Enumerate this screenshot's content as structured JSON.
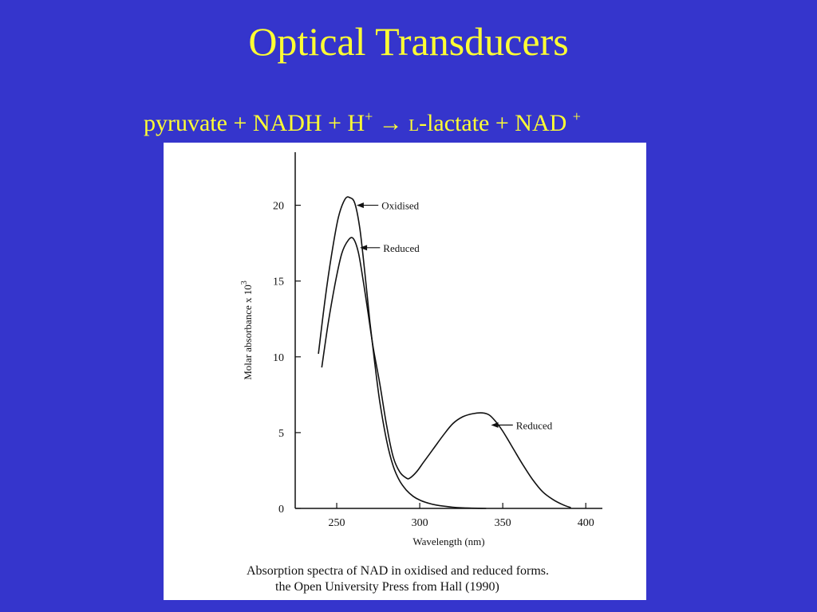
{
  "slide": {
    "title": "Optical Transducers",
    "equation": {
      "part1": "pyruvate + NADH + H",
      "h_sup": "+",
      "arrow": " → ",
      "l_prefix": "L",
      "part2": "-lactate + NAD ",
      "nad_sup": "+"
    }
  },
  "figure": {
    "caption_line1": "Absorption spectra of NAD in oxidised and reduced forms.",
    "caption_line2": "the Open University Press from Hall (1990)"
  },
  "colors": {
    "background": "#3535cc",
    "title_text": "#ffff33",
    "panel": "#ffffff",
    "ink": "#111111"
  },
  "chart_data": {
    "type": "line",
    "title": "",
    "xlabel": "Wavelength (nm)",
    "ylabel": "Molar absorbance  x  10",
    "ylabel_sup": "3",
    "xlim": [
      225,
      410
    ],
    "ylim": [
      0,
      23.5
    ],
    "xticks": [
      250,
      300,
      350,
      400
    ],
    "yticks": [
      0,
      5,
      10,
      15,
      20
    ],
    "grid": false,
    "series": [
      {
        "name": "Oxidised",
        "x": [
          239,
          243,
          247,
          251,
          255,
          258,
          261,
          264,
          267,
          270,
          273,
          276,
          280,
          284,
          288,
          292,
          296,
          300,
          305,
          310,
          320,
          330,
          340
        ],
        "y": [
          10.2,
          13.8,
          16.8,
          19.2,
          20.4,
          20.5,
          20.1,
          18.4,
          15.5,
          12.3,
          9.5,
          7.0,
          4.5,
          2.8,
          1.8,
          1.2,
          0.8,
          0.55,
          0.35,
          0.22,
          0.08,
          0.02,
          0.0
        ]
      },
      {
        "name": "Reduced",
        "x": [
          241,
          245,
          249,
          253,
          257,
          260,
          263,
          266,
          269,
          272,
          276,
          280,
          284,
          288,
          292,
          294,
          298,
          302,
          308,
          314,
          320,
          326,
          332,
          338,
          342,
          346,
          350,
          356,
          362,
          368,
          374,
          380,
          386,
          391
        ],
        "y": [
          9.3,
          12.3,
          14.8,
          16.8,
          17.7,
          17.8,
          16.9,
          15.0,
          12.8,
          10.6,
          8.2,
          5.5,
          3.4,
          2.4,
          2.0,
          2.0,
          2.4,
          3.0,
          3.9,
          4.8,
          5.6,
          6.05,
          6.25,
          6.3,
          6.15,
          5.7,
          5.1,
          4.0,
          2.9,
          1.9,
          1.1,
          0.6,
          0.25,
          0.05
        ]
      }
    ],
    "annotations": [
      {
        "text": "Oxidised",
        "series": "Oxidised",
        "at_x": 261,
        "text_x": 277,
        "text_y": 20.0
      },
      {
        "text": "Reduced",
        "series": "Reduced",
        "at_x": 263,
        "text_x": 278,
        "text_y": 17.2
      },
      {
        "text": "Reduced",
        "series": "Reduced",
        "at_x": 342,
        "text_x": 358,
        "text_y": 5.5
      }
    ]
  }
}
